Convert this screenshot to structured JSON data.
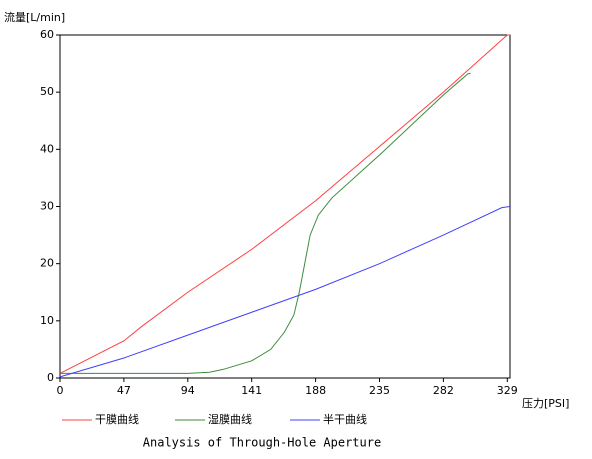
{
  "chart_data": {
    "type": "line",
    "title": "Analysis of Through-Hole Aperture",
    "y_label": "流量[L/min]",
    "x_label": "压力[PSI]",
    "xlim": [
      0,
      331
    ],
    "xticks": [
      0,
      47,
      94,
      141,
      188,
      235,
      282,
      329
    ],
    "ylim": [
      0,
      60
    ],
    "yticks": [
      0,
      10,
      20,
      30,
      40,
      50,
      60
    ],
    "series": [
      {
        "name": "干膜曲线",
        "color": "#ff4040",
        "x": [
          0,
          47,
          60,
          94,
          141,
          188,
          235,
          282,
          329,
          331
        ],
        "values": [
          0.8,
          6.5,
          9,
          15,
          22.5,
          31,
          40.5,
          50,
          60,
          60
        ]
      },
      {
        "name": "湿膜曲线",
        "color": "#3c8c3c",
        "x": [
          0,
          94,
          110,
          120,
          141,
          155,
          165,
          172,
          176,
          180,
          184,
          190,
          200,
          235,
          282,
          300,
          302
        ],
        "values": [
          0.8,
          0.8,
          1,
          1.5,
          3,
          5,
          8,
          11,
          15,
          20,
          25,
          28.5,
          31.5,
          39,
          49.5,
          53.2,
          53.3
        ]
      },
      {
        "name": "半干曲线",
        "color": "#4040ff",
        "x": [
          0,
          47,
          94,
          141,
          188,
          235,
          282,
          325,
          331
        ],
        "values": [
          0.2,
          3.5,
          7.5,
          11.5,
          15.5,
          20,
          25,
          29.8,
          30
        ]
      }
    ]
  }
}
